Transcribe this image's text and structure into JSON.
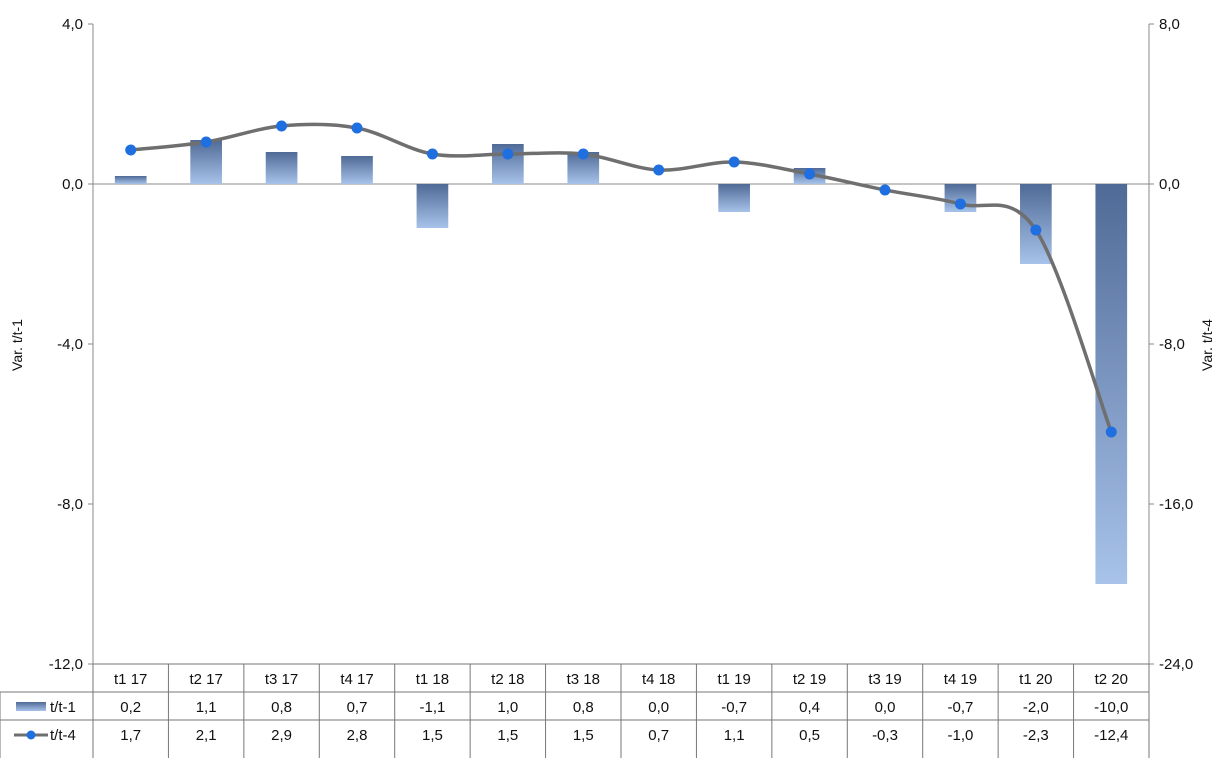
{
  "chart_data": {
    "type": "bar+line",
    "categories": [
      "t1 17",
      "t2 17",
      "t3 17",
      "t4 17",
      "t1 18",
      "t2 18",
      "t3 18",
      "t4 18",
      "t1 19",
      "t2 19",
      "t3 19",
      "t4 19",
      "t1 20",
      "t2 20"
    ],
    "series": [
      {
        "name": "t/t-1",
        "kind": "bar",
        "axis": "left",
        "values": [
          0.2,
          1.1,
          0.8,
          0.7,
          -1.1,
          1.0,
          0.8,
          0.0,
          -0.7,
          0.4,
          0.0,
          -0.7,
          -2.0,
          -10.0
        ],
        "labels": [
          "0,2",
          "1,1",
          "0,8",
          "0,7",
          "-1,1",
          "1,0",
          "0,8",
          "0,0",
          "-0,7",
          "0,4",
          "0,0",
          "-0,7",
          "-2,0",
          "-10,0"
        ]
      },
      {
        "name": "t/t-4",
        "kind": "line",
        "axis": "right",
        "values": [
          1.7,
          2.1,
          2.9,
          2.8,
          1.5,
          1.5,
          1.5,
          0.7,
          1.1,
          0.5,
          -0.3,
          -1.0,
          -2.3,
          -12.4
        ],
        "labels": [
          "1,7",
          "2,1",
          "2,9",
          "2,8",
          "1,5",
          "1,5",
          "1,5",
          "0,7",
          "1,1",
          "0,5",
          "-0,3",
          "-1,0",
          "-2,3",
          "-12,4"
        ]
      }
    ],
    "ylabel_left": "Var.  t/t-1",
    "ylabel_right": "Var.  t/t-4",
    "ylim_left": [
      -12,
      4
    ],
    "ylim_right": [
      -24,
      8
    ],
    "yticks_left": [
      "4,0",
      "0,0",
      "-4,0",
      "-8,0",
      "-12,0"
    ],
    "yticks_right": [
      "8,0",
      "0,0",
      "-8,0",
      "-16,0",
      "-24,0"
    ],
    "colors": {
      "bar_top": "#4f6a96",
      "bar_bottom": "#a8c3ea",
      "line": "#6f6f6f",
      "marker": "#1f6fe0",
      "axis": "#888888"
    },
    "legend_placement": "data-table"
  }
}
